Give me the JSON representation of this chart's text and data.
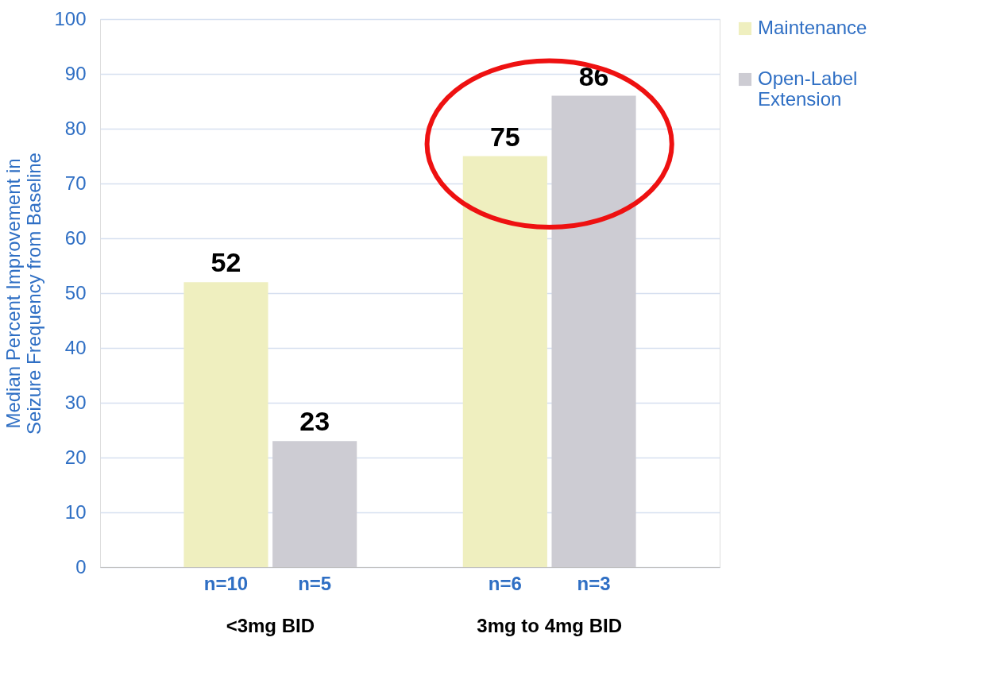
{
  "chart_data": {
    "type": "bar",
    "ylabel": "Median Percent Improvement in Seizure Frequency from Baseline",
    "categories": [
      "<3mg BID",
      "3mg to 4mg BID"
    ],
    "series": [
      {
        "name": "Maintenance",
        "color": "#efefbf",
        "values": [
          52,
          75
        ]
      },
      {
        "name": "Open-Label Extension",
        "color": "#cdccd3",
        "values": [
          23,
          86
        ]
      }
    ],
    "ylim": [
      0,
      100
    ],
    "yticks": [
      0,
      10,
      20,
      30,
      40,
      50,
      60,
      70,
      80,
      90,
      100
    ],
    "grid": "y",
    "legend": "right",
    "data_labels": true,
    "annotations": [
      "n=10",
      "n=5",
      "n=6",
      "n=3"
    ]
  }
}
